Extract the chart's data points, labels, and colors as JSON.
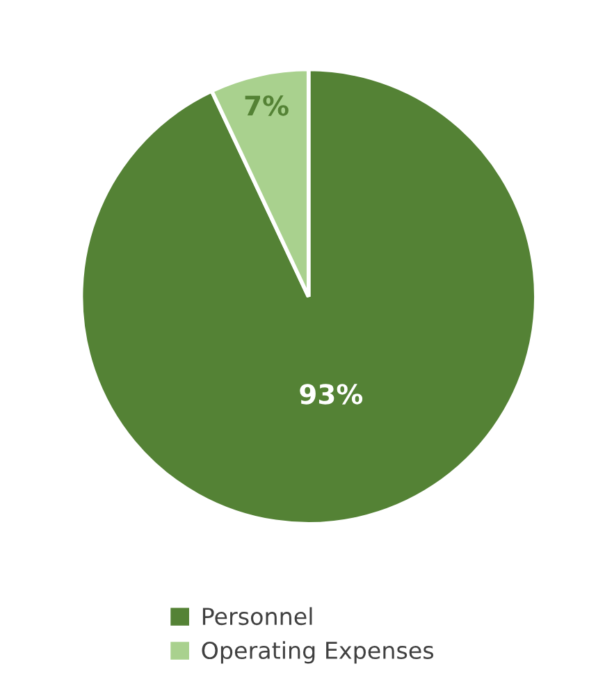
{
  "chart_data": {
    "type": "pie",
    "categories": [
      "Personnel",
      "Operating Expenses"
    ],
    "values": [
      93,
      7
    ],
    "colors": [
      "#548235",
      "#a9d18e"
    ],
    "value_labels": [
      "93%",
      "7%"
    ],
    "legend": "bottom"
  }
}
